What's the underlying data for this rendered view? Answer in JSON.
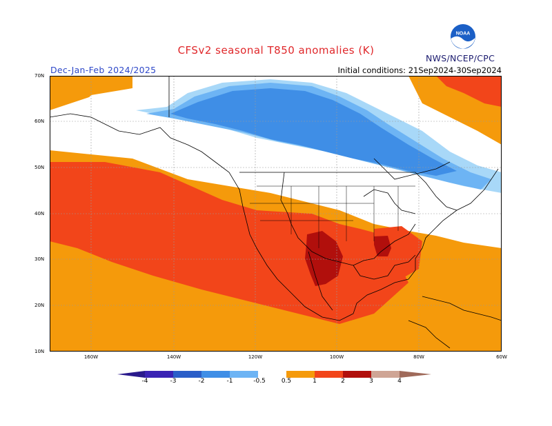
{
  "header": {
    "title": "CFSv2 seasonal T850 anomalies (K)",
    "period": "Dec-Jan-Feb 2024/2025",
    "initial_conditions": "Initial conditions: 21Sep2024-30Sep2024",
    "agency": "NWS/NCEP/CPC",
    "logo_text": "NOAA"
  },
  "colors": {
    "title": "#e0272a",
    "period": "#2d47c8",
    "agency": "#1a1a6e",
    "neg4": "#3a23b4",
    "neg3": "#2a5ec8",
    "neg2": "#3f8ee6",
    "neg1": "#6db4f4",
    "neg05": "#a8d8f8",
    "pos05": "#f59a0b",
    "pos1": "#f2451a",
    "pos2": "#b10f0c",
    "pos3": "#cfa595",
    "pos4": "#9f6a5a"
  },
  "map": {
    "lat_labels": [
      "70N",
      "60N",
      "50N",
      "40N",
      "30N",
      "20N",
      "10N"
    ],
    "lon_labels": [
      "160W",
      "140W",
      "120W",
      "100W",
      "80W",
      "60W"
    ]
  },
  "colorbar": {
    "labels": [
      "-4",
      "-3",
      "-2",
      "-1",
      "-0.5",
      "0.5",
      "1",
      "2",
      "3",
      "4"
    ]
  }
}
